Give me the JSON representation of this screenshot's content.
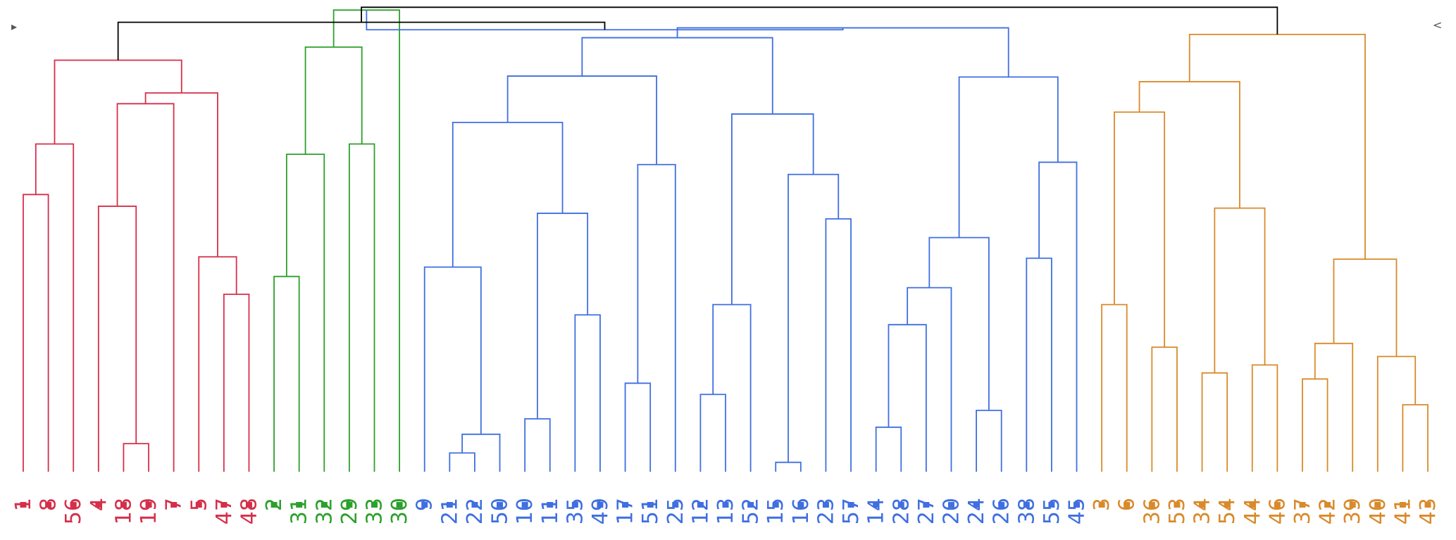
{
  "controls": {
    "left_glyph": "▸",
    "right_glyph": "<"
  },
  "colors": {
    "root": "#000000",
    "red": "#d62f4a",
    "green": "#2ca02c",
    "blue": "#3f6fe0",
    "orange": "#d98a2b"
  },
  "dendrogram": {
    "leaves": [
      {
        "label": "1",
        "group": "red"
      },
      {
        "label": "8",
        "group": "red"
      },
      {
        "label": "56",
        "group": "red"
      },
      {
        "label": "4",
        "group": "red"
      },
      {
        "label": "18",
        "group": "red"
      },
      {
        "label": "19",
        "group": "red"
      },
      {
        "label": "7",
        "group": "red"
      },
      {
        "label": "5",
        "group": "red"
      },
      {
        "label": "47",
        "group": "red"
      },
      {
        "label": "48",
        "group": "red"
      },
      {
        "label": "2",
        "group": "green"
      },
      {
        "label": "31",
        "group": "green"
      },
      {
        "label": "32",
        "group": "green"
      },
      {
        "label": "29",
        "group": "green"
      },
      {
        "label": "33",
        "group": "green"
      },
      {
        "label": "30",
        "group": "green"
      },
      {
        "label": "9",
        "group": "blue"
      },
      {
        "label": "21",
        "group": "blue"
      },
      {
        "label": "22",
        "group": "blue"
      },
      {
        "label": "50",
        "group": "blue"
      },
      {
        "label": "10",
        "group": "blue"
      },
      {
        "label": "11",
        "group": "blue"
      },
      {
        "label": "35",
        "group": "blue"
      },
      {
        "label": "49",
        "group": "blue"
      },
      {
        "label": "17",
        "group": "blue"
      },
      {
        "label": "51",
        "group": "blue"
      },
      {
        "label": "25",
        "group": "blue"
      },
      {
        "label": "12",
        "group": "blue"
      },
      {
        "label": "13",
        "group": "blue"
      },
      {
        "label": "52",
        "group": "blue"
      },
      {
        "label": "15",
        "group": "blue"
      },
      {
        "label": "16",
        "group": "blue"
      },
      {
        "label": "23",
        "group": "blue"
      },
      {
        "label": "57",
        "group": "blue"
      },
      {
        "label": "14",
        "group": "blue"
      },
      {
        "label": "28",
        "group": "blue"
      },
      {
        "label": "27",
        "group": "blue"
      },
      {
        "label": "20",
        "group": "blue"
      },
      {
        "label": "24",
        "group": "blue"
      },
      {
        "label": "26",
        "group": "blue"
      },
      {
        "label": "38",
        "group": "blue"
      },
      {
        "label": "55",
        "group": "blue"
      },
      {
        "label": "45",
        "group": "blue"
      },
      {
        "label": "3",
        "group": "orange"
      },
      {
        "label": "6",
        "group": "orange"
      },
      {
        "label": "36",
        "group": "orange"
      },
      {
        "label": "53",
        "group": "orange"
      },
      {
        "label": "34",
        "group": "orange"
      },
      {
        "label": "54",
        "group": "orange"
      },
      {
        "label": "44",
        "group": "orange"
      },
      {
        "label": "46",
        "group": "orange"
      },
      {
        "label": "37",
        "group": "orange"
      },
      {
        "label": "42",
        "group": "orange"
      },
      {
        "label": "39",
        "group": "orange"
      },
      {
        "label": "40",
        "group": "orange"
      },
      {
        "label": "41",
        "group": "orange"
      },
      {
        "label": "43",
        "group": "orange"
      }
    ],
    "merges": [
      {
        "a": "L0",
        "b": "L1",
        "h": 0.592,
        "color": "red"
      },
      {
        "a": "M0",
        "b": "L2",
        "h": 0.7,
        "color": "red"
      },
      {
        "a": "L4",
        "b": "L5",
        "h": 0.06,
        "color": "red"
      },
      {
        "a": "L3",
        "b": "M2",
        "h": 0.567,
        "color": "red"
      },
      {
        "a": "L8",
        "b": "L9",
        "h": 0.379,
        "color": "red"
      },
      {
        "a": "L7",
        "b": "M4",
        "h": 0.459,
        "color": "red"
      },
      {
        "a": "M3",
        "b": "L6",
        "h": 0.786,
        "color": "red"
      },
      {
        "a": "M6",
        "b": "M5",
        "h": 0.809,
        "color": "red"
      },
      {
        "a": "M1",
        "b": "M7",
        "h": 0.879,
        "color": "red"
      },
      {
        "a": "L10",
        "b": "L11",
        "h": 0.417,
        "color": "green"
      },
      {
        "a": "M9",
        "b": "L12",
        "h": 0.678,
        "color": "green"
      },
      {
        "a": "L13",
        "b": "L14",
        "h": 0.7,
        "color": "green"
      },
      {
        "a": "M10",
        "b": "M11",
        "h": 0.907,
        "color": "green"
      },
      {
        "a": "M12",
        "b": "L15",
        "h": 0.986,
        "color": "green"
      },
      {
        "a": "L17",
        "b": "L18",
        "h": 0.04,
        "color": "blue"
      },
      {
        "a": "M14",
        "b": "L19",
        "h": 0.08,
        "color": "blue"
      },
      {
        "a": "L16",
        "b": "M15",
        "h": 0.437,
        "color": "blue"
      },
      {
        "a": "L20",
        "b": "L21",
        "h": 0.113,
        "color": "blue"
      },
      {
        "a": "L22",
        "b": "L23",
        "h": 0.335,
        "color": "blue"
      },
      {
        "a": "M17",
        "b": "M18",
        "h": 0.552,
        "color": "blue"
      },
      {
        "a": "M16",
        "b": "M19",
        "h": 0.746,
        "color": "blue"
      },
      {
        "a": "L24",
        "b": "L25",
        "h": 0.189,
        "color": "blue"
      },
      {
        "a": "M21",
        "b": "L26",
        "h": 0.656,
        "color": "blue"
      },
      {
        "a": "M20",
        "b": "M22",
        "h": 0.845,
        "color": "blue"
      },
      {
        "a": "L27",
        "b": "L28",
        "h": 0.165,
        "color": "blue"
      },
      {
        "a": "M24",
        "b": "L29",
        "h": 0.357,
        "color": "blue"
      },
      {
        "a": "L30",
        "b": "L31",
        "h": 0.02,
        "color": "blue"
      },
      {
        "a": "L32",
        "b": "L33",
        "h": 0.54,
        "color": "blue"
      },
      {
        "a": "M26",
        "b": "M27",
        "h": 0.635,
        "color": "blue"
      },
      {
        "a": "M25",
        "b": "M28",
        "h": 0.764,
        "color": "blue"
      },
      {
        "a": "M23",
        "b": "M29",
        "h": 0.927,
        "color": "blue"
      },
      {
        "a": "L34",
        "b": "L35",
        "h": 0.095,
        "color": "blue"
      },
      {
        "a": "M31",
        "b": "L36",
        "h": 0.314,
        "color": "blue"
      },
      {
        "a": "M32",
        "b": "L37",
        "h": 0.393,
        "color": "blue"
      },
      {
        "a": "L38",
        "b": "L39",
        "h": 0.131,
        "color": "blue"
      },
      {
        "a": "M33",
        "b": "M34",
        "h": 0.5,
        "color": "blue"
      },
      {
        "a": "L40",
        "b": "L41",
        "h": 0.456,
        "color": "blue"
      },
      {
        "a": "M36",
        "b": "L42",
        "h": 0.661,
        "color": "blue"
      },
      {
        "a": "M35",
        "b": "M37",
        "h": 0.843,
        "color": "blue"
      },
      {
        "a": "M30",
        "b": "M38",
        "h": 0.948,
        "color": "blue"
      },
      {
        "a": "M39",
        "b": "M13",
        "h": 0.944,
        "color": "blue"
      },
      {
        "a": "L43",
        "b": "L44",
        "h": 0.357,
        "color": "orange"
      },
      {
        "a": "L45",
        "b": "L46",
        "h": 0.266,
        "color": "orange"
      },
      {
        "a": "M41",
        "b": "M42",
        "h": 0.768,
        "color": "orange"
      },
      {
        "a": "L47",
        "b": "L48",
        "h": 0.211,
        "color": "orange"
      },
      {
        "a": "L49",
        "b": "L50",
        "h": 0.228,
        "color": "orange"
      },
      {
        "a": "M44",
        "b": "M45",
        "h": 0.563,
        "color": "orange"
      },
      {
        "a": "M43",
        "b": "M46",
        "h": 0.833,
        "color": "orange"
      },
      {
        "a": "L51",
        "b": "L52",
        "h": 0.198,
        "color": "orange"
      },
      {
        "a": "M48",
        "b": "L53",
        "h": 0.274,
        "color": "orange"
      },
      {
        "a": "L55",
        "b": "L56",
        "h": 0.143,
        "color": "orange"
      },
      {
        "a": "L54",
        "b": "M50",
        "h": 0.246,
        "color": "orange"
      },
      {
        "a": "M49",
        "b": "M51",
        "h": 0.454,
        "color": "orange"
      },
      {
        "a": "M47",
        "b": "M52",
        "h": 0.934,
        "color": "orange"
      },
      {
        "a": "M8",
        "b": "M40",
        "h": 0.96,
        "color": "root"
      },
      {
        "a": "M54",
        "b": "M53",
        "h": 0.992,
        "color": "root"
      }
    ]
  }
}
